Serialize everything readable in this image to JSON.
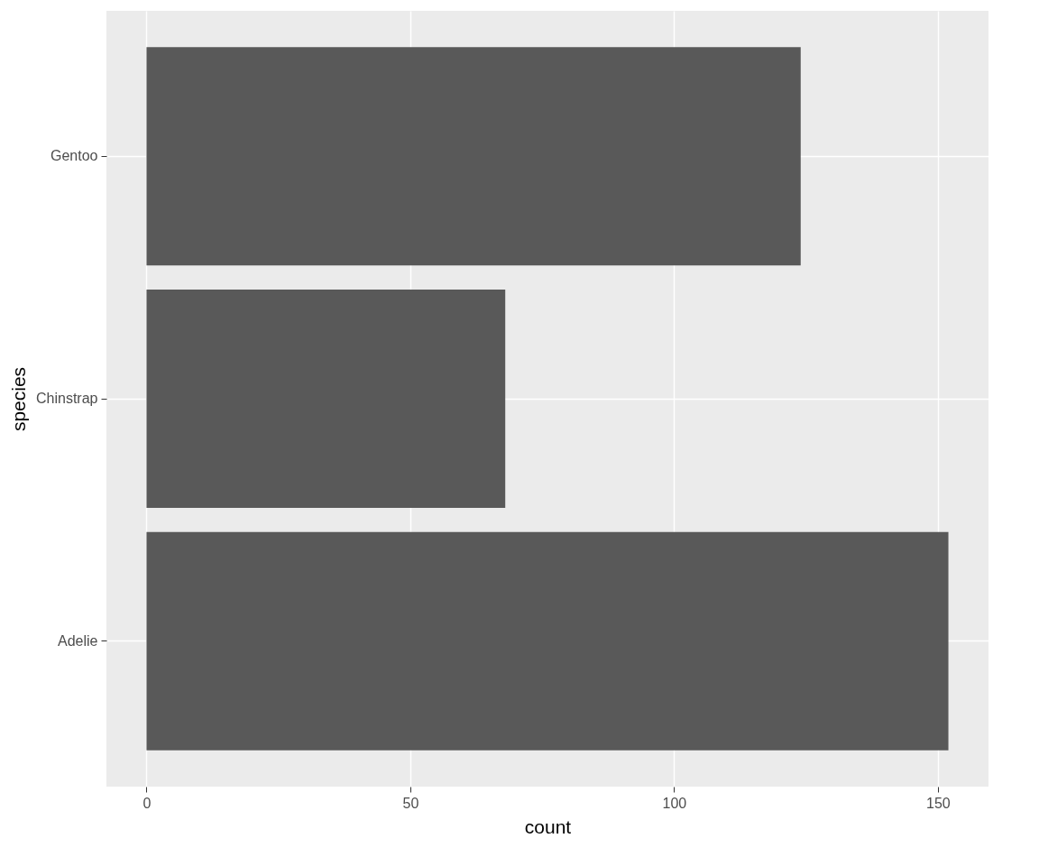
{
  "chart_data": {
    "type": "bar",
    "orientation": "horizontal",
    "xlabel": "count",
    "ylabel": "species",
    "categories": [
      "Gentoo",
      "Chinstrap",
      "Adelie"
    ],
    "values": [
      124,
      68,
      152
    ],
    "color": "#595959",
    "xlim": [
      -7.6,
      159.6
    ],
    "xticks": [
      0,
      50,
      100,
      150
    ],
    "grid": true
  }
}
